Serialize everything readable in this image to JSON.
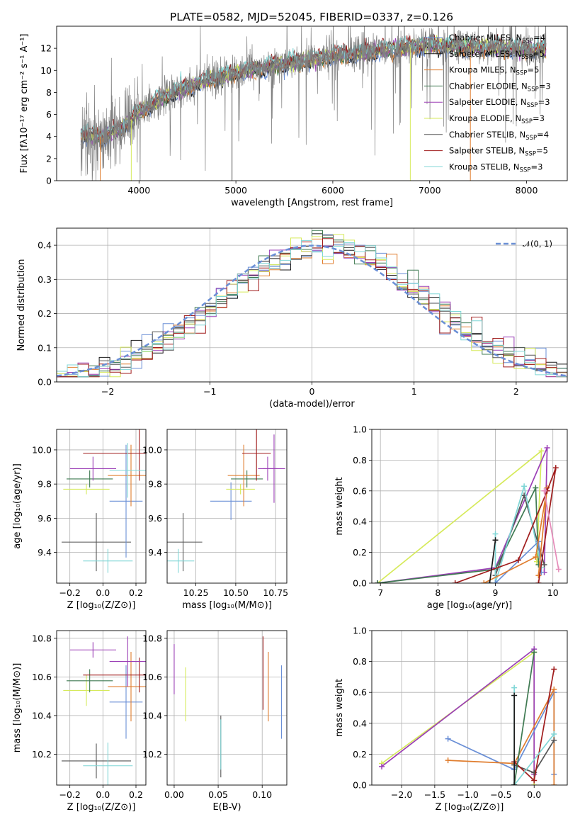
{
  "title": "PLATE=0582, MJD=52045, FIBERID=0337, z=0.126",
  "colors": {
    "Chabrier MILES": "#6a8fd6",
    "Salpeter MILES": "#1a1a1a",
    "Kroupa MILES": "#e07d2e",
    "Chabrier ELODIE": "#3f7a52",
    "Salpeter ELODIE": "#9b3fb6",
    "Kroupa ELODIE": "#d6ea5b",
    "Chabrier STELIB": "#555555",
    "Salpeter STELIB": "#a01c1c",
    "Kroupa STELIB": "#7fd6d6",
    "gauss": "#6a8fd6",
    "data": "#808080"
  },
  "legend_models": [
    {
      "key": "Chabrier MILES",
      "label": "Chabrier MILES, N",
      "sub": "SSP",
      "suffix": "=4"
    },
    {
      "key": "Salpeter MILES",
      "label": "Salpeter MILES, N",
      "sub": "SSP",
      "suffix": "=5"
    },
    {
      "key": "Kroupa MILES",
      "label": "Kroupa MILES, N",
      "sub": "SSP",
      "suffix": "=5"
    },
    {
      "key": "Chabrier ELODIE",
      "label": "Chabrier ELODIE, N",
      "sub": "SSP",
      "suffix": "=3"
    },
    {
      "key": "Salpeter ELODIE",
      "label": "Salpeter ELODIE, N",
      "sub": "SSP",
      "suffix": "=3"
    },
    {
      "key": "Kroupa ELODIE",
      "label": "Kroupa ELODIE, N",
      "sub": "SSP",
      "suffix": "=3"
    },
    {
      "key": "Chabrier STELIB",
      "label": "Chabrier STELIB, N",
      "sub": "SSP",
      "suffix": "=4"
    },
    {
      "key": "Salpeter STELIB",
      "label": "Salpeter STELIB, N",
      "sub": "SSP",
      "suffix": "=5"
    },
    {
      "key": "Kroupa STELIB",
      "label": "Kroupa STELIB, N",
      "sub": "SSP",
      "suffix": "=3"
    }
  ],
  "chart_data": [
    {
      "id": "spectrum",
      "type": "line",
      "xlabel": "wavelength [Angstrom, rest frame]",
      "ylabel": "Flux [fλ10⁻¹⁷ erg cm⁻² s⁻¹ A⁻¹]",
      "xlim": [
        3150,
        8420
      ],
      "ylim": [
        0,
        14
      ],
      "xticks": [
        4000,
        5000,
        6000,
        7000,
        8000
      ],
      "yticks": [
        0,
        2,
        4,
        6,
        8,
        10,
        12
      ],
      "x_range_data": [
        3400,
        8200
      ],
      "continuum_knots": [
        [
          3400,
          4.2
        ],
        [
          3600,
          4.0
        ],
        [
          3800,
          4.6
        ],
        [
          4000,
          6.2
        ],
        [
          4300,
          7.8
        ],
        [
          4600,
          8.8
        ],
        [
          5000,
          9.8
        ],
        [
          5500,
          10.6
        ],
        [
          6000,
          11.3
        ],
        [
          6500,
          11.8
        ],
        [
          7000,
          12.3
        ],
        [
          7500,
          12.1
        ],
        [
          8200,
          11.8
        ]
      ]
    },
    {
      "id": "residuals",
      "type": "line",
      "xlabel": "(data-model)/error",
      "ylabel": "Normed distribution",
      "xlim": [
        -2.5,
        2.5
      ],
      "ylim": [
        0,
        0.45
      ],
      "xticks": [
        -2,
        -1,
        0,
        1,
        2
      ],
      "yticks": [
        0.0,
        0.1,
        0.2,
        0.3,
        0.4
      ],
      "legend": "𝒩(0, 1)",
      "gaussian": {
        "mu": 0,
        "sigma": 1
      },
      "hist_bins": 48
    },
    {
      "id": "age-vs-Z",
      "type": "scatter",
      "xlabel": "Z [log₁₀(Z/Z⊙)]",
      "ylabel": "age  [log₁₀(age/yr)]",
      "xlim": [
        -0.28,
        0.26
      ],
      "ylim": [
        9.22,
        10.12
      ],
      "xticks": [
        -0.2,
        0.0,
        0.2
      ],
      "yticks": [
        9.4,
        9.6,
        9.8,
        10.0
      ],
      "points": [
        {
          "model": "Chabrier STELIB",
          "x": -0.04,
          "y": 9.46,
          "xerr": 0.21,
          "yerr": 0.17
        },
        {
          "model": "Kroupa STELIB",
          "x": 0.03,
          "y": 9.35,
          "xerr": 0.15,
          "yerr": 0.07
        },
        {
          "model": "Chabrier MILES",
          "x": 0.14,
          "y": 9.7,
          "xerr": 0.1,
          "yerr": 0.33
        },
        {
          "model": "Kroupa ELODIE",
          "x": -0.1,
          "y": 9.77,
          "xerr": 0.14,
          "yerr": 0.03
        },
        {
          "model": "Chabrier ELODIE",
          "x": -0.08,
          "y": 9.83,
          "xerr": 0.14,
          "yerr": 0.05
        },
        {
          "model": "Kroupa MILES",
          "x": 0.17,
          "y": 9.85,
          "xerr": 0.14,
          "yerr": 0.18
        },
        {
          "model": "Salpeter ELODIE",
          "x": -0.06,
          "y": 9.89,
          "xerr": 0.14,
          "yerr": 0.07
        },
        {
          "model": "Salpeter STELIB",
          "x": 0.22,
          "y": 9.98,
          "xerr": 0.34,
          "yerr": 0.16
        },
        {
          "model": "Kroupa STELIB",
          "x": 0.15,
          "y": 9.88,
          "xerr": 0.11,
          "yerr": 0.16
        }
      ]
    },
    {
      "id": "age-vs-mass",
      "type": "scatter",
      "xlabel": "mass [log₁₀(M/M⊙)]",
      "ylabel": "",
      "xlim": [
        10.07,
        10.82
      ],
      "ylim": [
        9.22,
        10.12
      ],
      "xticks": [
        10.25,
        10.5,
        10.75
      ],
      "yticks": [
        9.4,
        9.6,
        9.8,
        10.0
      ],
      "points": [
        {
          "model": "Chabrier STELIB",
          "x": 10.17,
          "y": 9.46,
          "xerr": 0.12,
          "yerr": 0.17
        },
        {
          "model": "Kroupa STELIB",
          "x": 10.14,
          "y": 9.35,
          "xerr": 0.1,
          "yerr": 0.07
        },
        {
          "model": "Chabrier MILES",
          "x": 10.47,
          "y": 9.7,
          "xerr": 0.13,
          "yerr": 0.11
        },
        {
          "model": "Kroupa ELODIE",
          "x": 10.53,
          "y": 9.77,
          "xerr": 0.09,
          "yerr": 0.03
        },
        {
          "model": "Chabrier ELODIE",
          "x": 10.57,
          "y": 9.83,
          "xerr": 0.1,
          "yerr": 0.05
        },
        {
          "model": "Kroupa MILES",
          "x": 10.55,
          "y": 9.85,
          "xerr": 0.1,
          "yerr": 0.18
        },
        {
          "model": "Salpeter ELODIE",
          "x": 10.74,
          "y": 9.89,
          "xerr": 0.07,
          "yerr": 0.2
        },
        {
          "model": "Salpeter STELIB",
          "x": 10.63,
          "y": 9.98,
          "xerr": 0.09,
          "yerr": 0.16
        },
        {
          "model": "Salpeter ELODIE",
          "x": 10.7,
          "y": 9.89,
          "xerr": 0.06,
          "yerr": 0.07
        }
      ]
    },
    {
      "id": "weight-vs-age",
      "type": "line",
      "xlabel": "age  [log₁₀(age/yr)]",
      "ylabel": "mass weight",
      "xlim": [
        6.85,
        10.25
      ],
      "ylim": [
        0,
        1.0
      ],
      "xticks": [
        7,
        8,
        9,
        10
      ],
      "yticks": [
        0.0,
        0.2,
        0.4,
        0.6,
        0.8,
        1.0
      ],
      "series": [
        {
          "model": "Kroupa ELODIE",
          "points": [
            [
              6.95,
              0.0
            ],
            [
              9.8,
              0.86
            ],
            [
              9.72,
              0.14
            ]
          ]
        },
        {
          "model": "Salpeter ELODIE",
          "points": [
            [
              6.95,
              0.0
            ],
            [
              9.0,
              0.1
            ],
            [
              9.9,
              0.88
            ],
            [
              9.85,
              0.07
            ]
          ]
        },
        {
          "model": "Chabrier ELODIE",
          "points": [
            [
              6.95,
              0.0
            ],
            [
              9.0,
              0.09
            ],
            [
              9.7,
              0.62
            ],
            [
              9.75,
              0.12
            ]
          ]
        },
        {
          "model": "Chabrier STELIB",
          "points": [
            [
              9.0,
              0.05
            ],
            [
              9.5,
              0.57
            ],
            [
              9.85,
              0.12
            ]
          ]
        },
        {
          "model": "Kroupa STELIB",
          "points": [
            [
              9.0,
              0.32
            ],
            [
              9.0,
              0.0
            ],
            [
              9.5,
              0.63
            ],
            [
              9.8,
              0.1
            ]
          ]
        },
        {
          "model": "Chabrier MILES",
          "points": [
            [
              9.0,
              0.0
            ],
            [
              9.75,
              0.27
            ],
            [
              9.8,
              0.07
            ]
          ]
        },
        {
          "model": "Kroupa MILES",
          "points": [
            [
              8.8,
              0.0
            ],
            [
              9.7,
              0.17
            ],
            [
              9.9,
              0.62
            ],
            [
              9.75,
              0.05
            ]
          ]
        },
        {
          "model": "Salpeter STELIB",
          "points": [
            [
              8.3,
              0.0
            ],
            [
              9.4,
              0.15
            ],
            [
              9.9,
              0.6
            ],
            [
              10.05,
              0.75
            ],
            [
              9.75,
              0.0
            ]
          ]
        },
        {
          "model": "Salpeter MILES",
          "points": [
            [
              8.9,
              0.0
            ],
            [
              9.0,
              0.28
            ]
          ]
        },
        {
          "model": "Salpeter ELODIE",
          "points": [
            [
              10.1,
              0.09
            ],
            [
              9.85,
              0.6
            ]
          ],
          "color_override": "#e58bb9"
        }
      ]
    },
    {
      "id": "mass-vs-Z",
      "type": "scatter",
      "xlabel": "Z [log₁₀(Z/Z⊙)]",
      "ylabel": "mass [log₁₀(M/M⊙)]",
      "xlim": [
        -0.28,
        0.26
      ],
      "ylim": [
        10.04,
        10.84
      ],
      "xticks": [
        -0.2,
        0.0,
        0.2
      ],
      "yticks": [
        10.2,
        10.4,
        10.6,
        10.8
      ],
      "points": [
        {
          "model": "Chabrier STELIB",
          "x": -0.04,
          "y": 10.165,
          "xerr": 0.21,
          "yerr": 0.09
        },
        {
          "model": "Kroupa STELIB",
          "x": 0.03,
          "y": 10.14,
          "xerr": 0.15,
          "yerr": 0.12
        },
        {
          "model": "Chabrier MILES",
          "x": 0.14,
          "y": 10.47,
          "xerr": 0.1,
          "yerr": 0.19
        },
        {
          "model": "Kroupa ELODIE",
          "x": -0.1,
          "y": 10.53,
          "xerr": 0.14,
          "yerr": 0.08
        },
        {
          "model": "Chabrier ELODIE",
          "x": -0.08,
          "y": 10.58,
          "xerr": 0.14,
          "yerr": 0.06
        },
        {
          "model": "Kroupa MILES",
          "x": 0.17,
          "y": 10.55,
          "xerr": 0.14,
          "yerr": 0.18
        },
        {
          "model": "Salpeter ELODIE",
          "x": -0.06,
          "y": 10.74,
          "xerr": 0.14,
          "yerr": 0.04
        },
        {
          "model": "Salpeter STELIB",
          "x": 0.22,
          "y": 10.61,
          "xerr": 0.34,
          "yerr": 0.09
        },
        {
          "model": "Salpeter ELODIE",
          "x": 0.15,
          "y": 10.68,
          "xerr": 0.11,
          "yerr": 0.13
        }
      ]
    },
    {
      "id": "mass-vs-ebv",
      "type": "scatter",
      "xlabel": "E(B-V)",
      "ylabel": "",
      "xlim": [
        -0.008,
        0.128
      ],
      "ylim": [
        10.04,
        10.84
      ],
      "xticks": [
        0.0,
        0.05,
        0.1
      ],
      "yticks": [
        10.2,
        10.4,
        10.6,
        10.8
      ],
      "points": [
        {
          "model": "Salpeter ELODIE",
          "x": 0.0,
          "y": 10.64,
          "xerr": 0,
          "yerr": 0.13
        },
        {
          "model": "Kroupa ELODIE",
          "x": 0.013,
          "y": 10.51,
          "xerr": 0,
          "yerr": 0.14
        },
        {
          "model": "Chabrier STELIB",
          "x": 0.053,
          "y": 10.24,
          "xerr": 0,
          "yerr": 0.16
        },
        {
          "model": "Salpeter STELIB",
          "x": 0.101,
          "y": 10.62,
          "xerr": 0,
          "yerr": 0.19
        },
        {
          "model": "Kroupa MILES",
          "x": 0.107,
          "y": 10.55,
          "xerr": 0,
          "yerr": 0.18
        },
        {
          "model": "Chabrier MILES",
          "x": 0.122,
          "y": 10.47,
          "xerr": 0,
          "yerr": 0.19
        },
        {
          "model": "Kroupa STELIB",
          "x": 0.053,
          "y": 10.25,
          "xerr": 0,
          "yerr": 0.13
        }
      ]
    },
    {
      "id": "weight-vs-Z",
      "type": "line",
      "xlabel": "Z [log₁₀(Z/Z⊙)]",
      "ylabel": "mass weight",
      "xlim": [
        -2.45,
        0.5
      ],
      "ylim": [
        0,
        1.0
      ],
      "xticks": [
        -2.0,
        -1.5,
        -1.0,
        -0.5,
        0.0
      ],
      "yticks": [
        0.0,
        0.2,
        0.4,
        0.6,
        0.8,
        1.0
      ],
      "series": [
        {
          "model": "Kroupa ELODIE",
          "points": [
            [
              -2.3,
              0.14
            ],
            [
              0.0,
              0.86
            ],
            [
              0.0,
              0.0
            ]
          ]
        },
        {
          "model": "Salpeter ELODIE",
          "points": [
            [
              -2.3,
              0.12
            ],
            [
              0.0,
              0.88
            ],
            [
              0.0,
              0.07
            ]
          ]
        },
        {
          "model": "Chabrier MILES",
          "points": [
            [
              -1.3,
              0.3
            ],
            [
              -0.3,
              0.1
            ],
            [
              0.3,
              0.6
            ],
            [
              0.3,
              0.07
            ]
          ]
        },
        {
          "model": "Kroupa MILES",
          "points": [
            [
              -1.3,
              0.16
            ],
            [
              -0.3,
              0.14
            ],
            [
              0.3,
              0.62
            ],
            [
              0.3,
              0.0
            ]
          ]
        },
        {
          "model": "Chabrier STELIB",
          "points": [
            [
              -0.3,
              0.13
            ],
            [
              0.0,
              0.08
            ],
            [
              0.3,
              0.29
            ]
          ]
        },
        {
          "model": "Salpeter STELIB",
          "points": [
            [
              -0.3,
              0.15
            ],
            [
              0.0,
              0.03
            ],
            [
              0.3,
              0.75
            ]
          ]
        },
        {
          "model": "Kroupa STELIB",
          "points": [
            [
              -0.3,
              0.63
            ],
            [
              -0.3,
              0.0
            ],
            [
              0.3,
              0.33
            ]
          ]
        },
        {
          "model": "Chabrier ELODIE",
          "points": [
            [
              -0.3,
              0.0
            ],
            [
              0.0,
              0.86
            ]
          ]
        },
        {
          "model": "Salpeter MILES",
          "points": [
            [
              -0.3,
              0.58
            ],
            [
              -0.3,
              0.0
            ]
          ]
        }
      ]
    }
  ]
}
